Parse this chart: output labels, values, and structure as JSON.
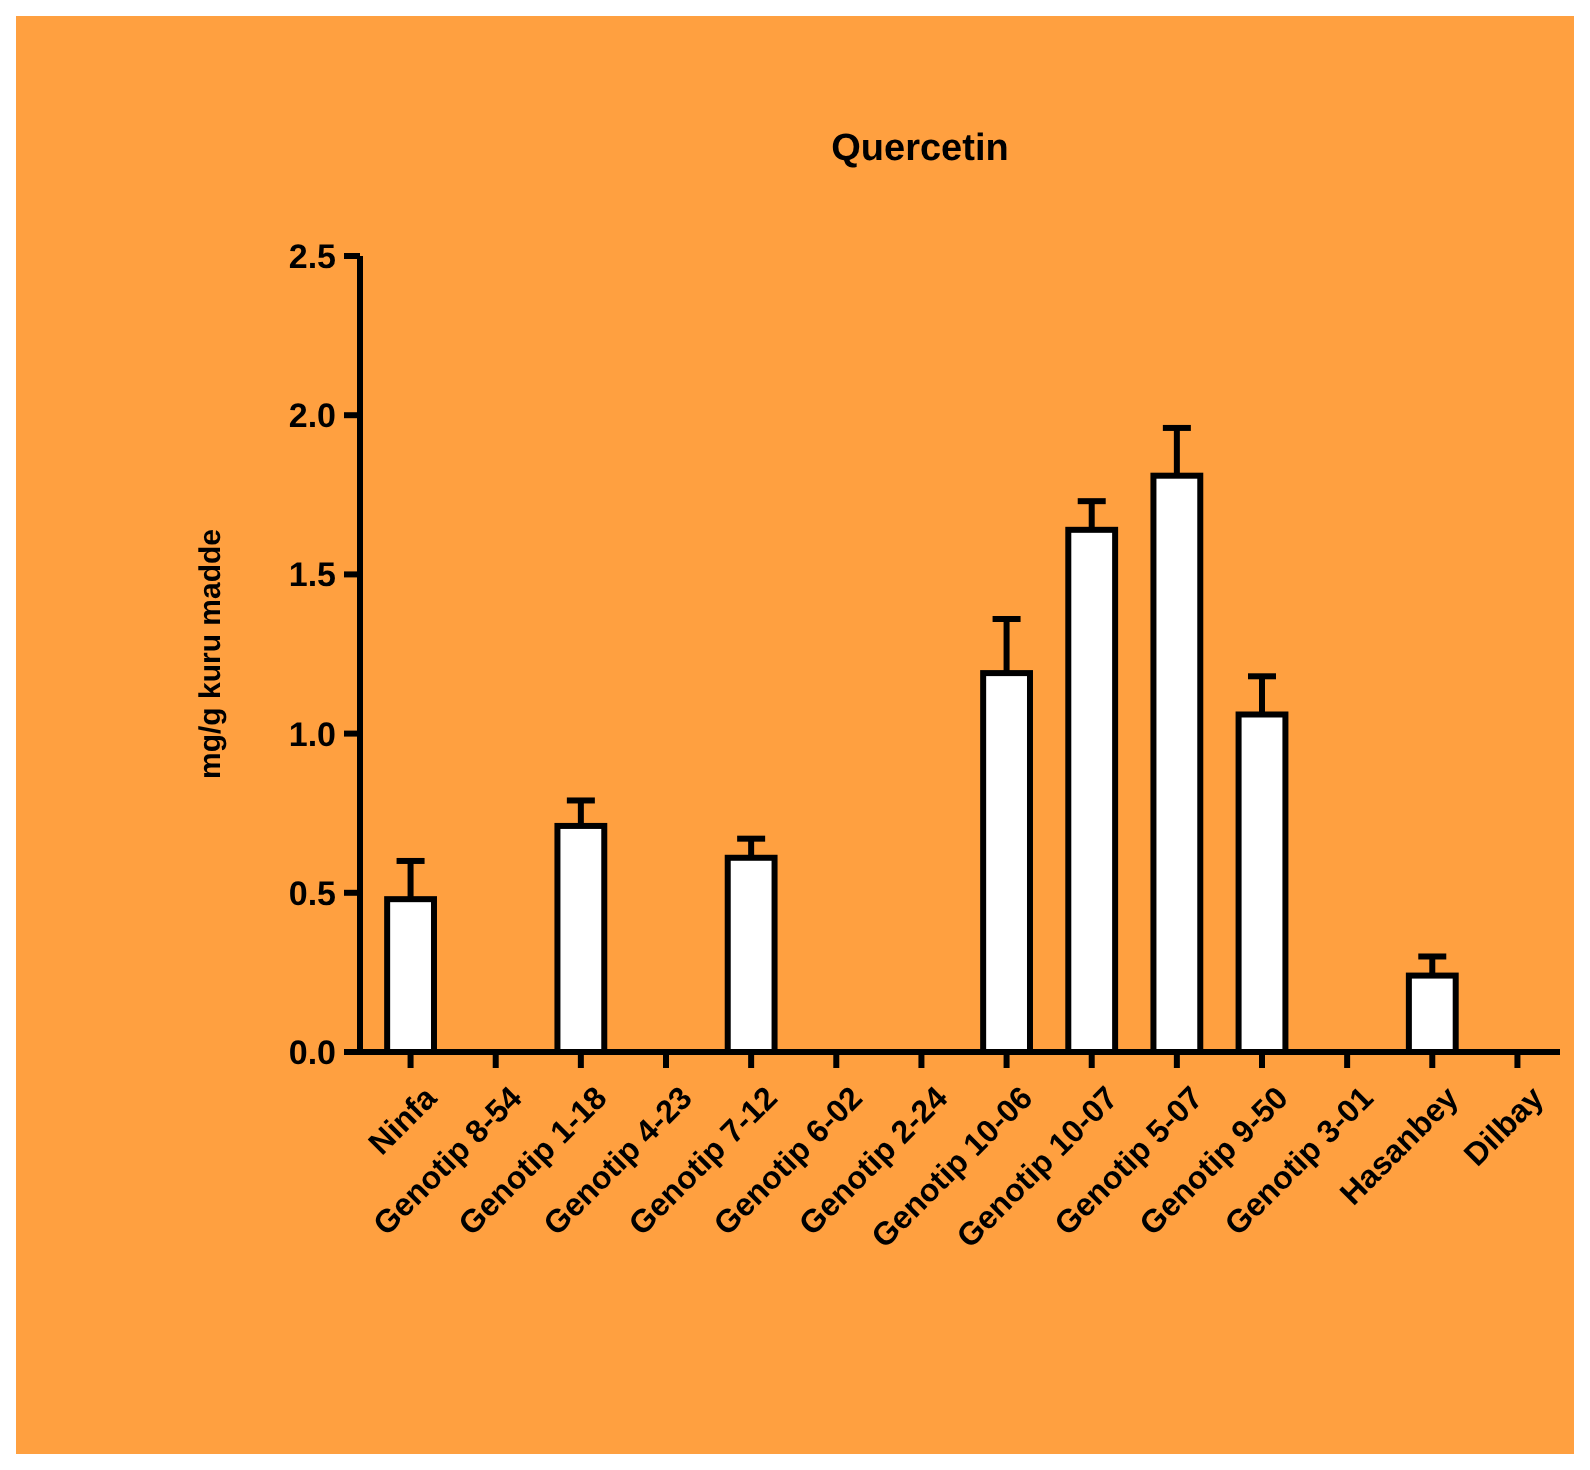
{
  "chart_data": {
    "type": "bar",
    "title": "Quercetin",
    "ylabel": "mg/g kuru madde",
    "categories": [
      "Ninfa",
      "Genotip 8-54",
      "Genotip 1-18",
      "Genotip 4-23",
      "Genotip 7-12",
      "Genotip 6-02",
      "Genotip 2-24",
      "Genotip 10-06",
      "Genotip 10-07",
      "Genotip 5-07",
      "Genotip 9-50",
      "Genotip 3-01",
      "Hasanbey",
      "Dilbay"
    ],
    "values": [
      0.48,
      0,
      0.71,
      0,
      0.61,
      0,
      0,
      1.19,
      1.64,
      1.81,
      1.06,
      0,
      0.24,
      0
    ],
    "errors": [
      0.12,
      null,
      0.08,
      null,
      0.06,
      null,
      null,
      0.17,
      0.09,
      0.15,
      0.12,
      null,
      0.06,
      null
    ],
    "color": "#ffffff",
    "ylim": [
      0,
      2.5
    ],
    "yticks": [
      {
        "value": 0,
        "label": "0.0"
      },
      {
        "value": 0.5,
        "label": "0.5"
      },
      {
        "value": 1,
        "label": "1.0"
      },
      {
        "value": 1.5,
        "label": "1.5"
      },
      {
        "value": 2,
        "label": "2.0"
      },
      {
        "value": 2.5,
        "label": "2.5"
      }
    ],
    "grid": false
  }
}
